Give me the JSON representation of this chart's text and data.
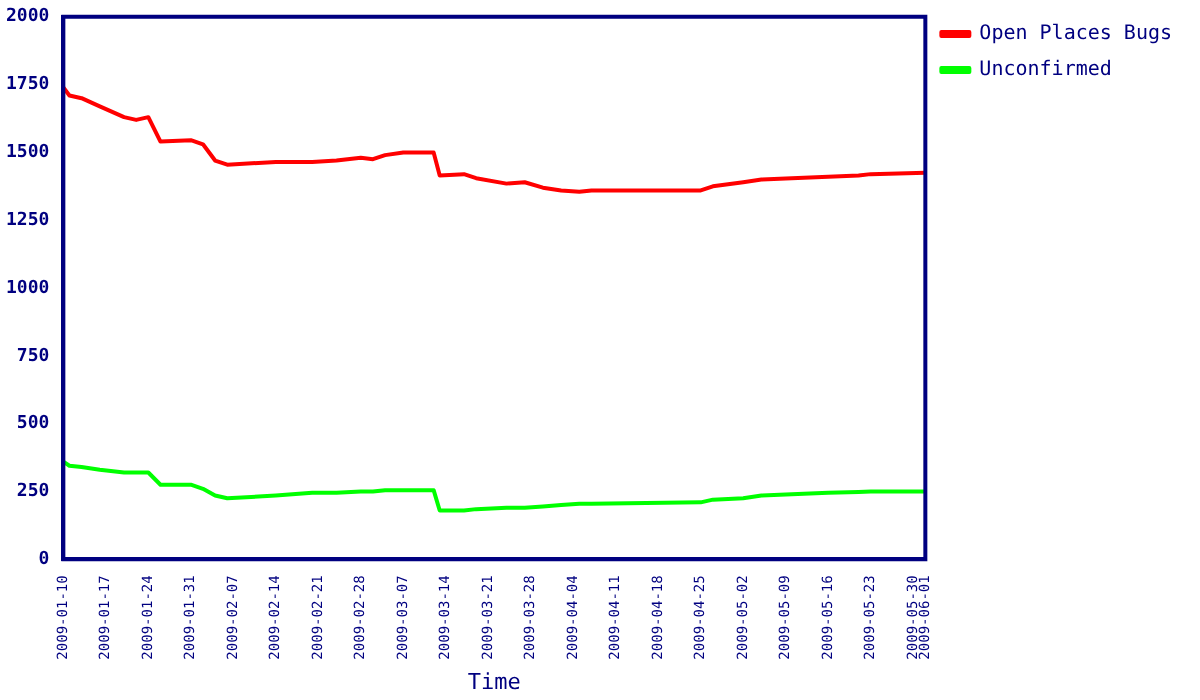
{
  "chart_data": {
    "type": "line",
    "xlabel": "Time",
    "x": [
      "2009-01-10",
      "2009-01-11",
      "2009-01-13",
      "2009-01-16",
      "2009-01-20",
      "2009-01-22",
      "2009-01-24",
      "2009-01-26",
      "2009-01-31",
      "2009-02-02",
      "2009-02-04",
      "2009-02-06",
      "2009-02-14",
      "2009-02-20",
      "2009-02-24",
      "2009-02-28",
      "2009-03-02",
      "2009-03-04",
      "2009-03-07",
      "2009-03-12",
      "2009-03-13",
      "2009-03-17",
      "2009-03-19",
      "2009-03-24",
      "2009-03-27",
      "2009-03-30",
      "2009-04-02",
      "2009-04-05",
      "2009-04-07",
      "2009-04-25",
      "2009-04-27",
      "2009-05-02",
      "2009-05-05",
      "2009-05-10",
      "2009-05-16",
      "2009-05-21",
      "2009-05-23",
      "2009-06-01"
    ],
    "series": [
      {
        "name": "Open Places Bugs",
        "color": "#ff0000",
        "values": [
          1740,
          1710,
          1700,
          1670,
          1630,
          1620,
          1630,
          1540,
          1545,
          1530,
          1470,
          1455,
          1465,
          1465,
          1470,
          1480,
          1475,
          1490,
          1500,
          1500,
          1415,
          1420,
          1405,
          1385,
          1390,
          1370,
          1360,
          1355,
          1360,
          1360,
          1375,
          1390,
          1400,
          1405,
          1410,
          1415,
          1420,
          1425
        ]
      },
      {
        "name": "Unconfirmed",
        "color": "#00ff00",
        "values": [
          360,
          345,
          340,
          330,
          320,
          320,
          320,
          275,
          275,
          260,
          235,
          225,
          235,
          245,
          245,
          250,
          250,
          255,
          255,
          255,
          180,
          180,
          185,
          190,
          190,
          195,
          200,
          205,
          205,
          210,
          220,
          225,
          235,
          240,
          245,
          248,
          250,
          250
        ]
      }
    ],
    "ylim": [
      0,
      2000
    ],
    "yticks": [
      0,
      250,
      500,
      750,
      1000,
      1250,
      1500,
      1750,
      2000
    ],
    "xlim": [
      "2009-01-10",
      "2009-06-01"
    ],
    "xticks": [
      "2009-01-10",
      "2009-01-17",
      "2009-01-24",
      "2009-01-31",
      "2009-02-07",
      "2009-02-14",
      "2009-02-21",
      "2009-02-28",
      "2009-03-07",
      "2009-03-14",
      "2009-03-21",
      "2009-03-28",
      "2009-04-04",
      "2009-04-11",
      "2009-04-18",
      "2009-04-25",
      "2009-05-02",
      "2009-05-09",
      "2009-05-16",
      "2009-05-23",
      "2009-05-30",
      "2009-06-01"
    ],
    "grid": false,
    "legend": "top right",
    "marker": "none",
    "line_style": "solid"
  }
}
